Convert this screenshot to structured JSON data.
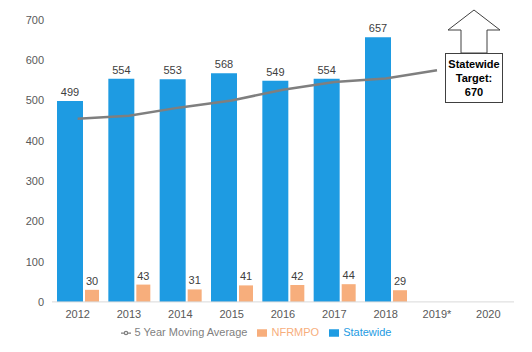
{
  "chart_data": {
    "type": "bar",
    "categories": [
      "2012",
      "2013",
      "2014",
      "2015",
      "2016",
      "2017",
      "2018",
      "2019*",
      "2020"
    ],
    "series": [
      {
        "name": "Statewide",
        "type": "bar",
        "color": "#1E9BE2",
        "data_labels": true,
        "values": [
          499,
          554,
          553,
          568,
          549,
          554,
          657,
          null,
          null
        ]
      },
      {
        "name": "NFRMPO",
        "type": "bar",
        "color": "#F7AE7C",
        "data_labels": true,
        "values": [
          30,
          43,
          31,
          41,
          42,
          44,
          29,
          null,
          null
        ]
      },
      {
        "name": "5 Year Moving Average",
        "type": "line",
        "color": "#7F7F7F",
        "marker": "none",
        "line_style": "solid",
        "data_labels": false,
        "values": [
          455,
          462,
          483,
          500,
          527,
          546,
          555,
          575,
          null
        ]
      }
    ],
    "ylim": [
      0,
      700
    ],
    "yticks": [
      0,
      100,
      200,
      300,
      400,
      500,
      600,
      700
    ],
    "grid": false,
    "legend": "bottom",
    "annotations": [
      {
        "text": "Statewide Target:",
        "value": 670,
        "x": "2020"
      }
    ]
  }
}
